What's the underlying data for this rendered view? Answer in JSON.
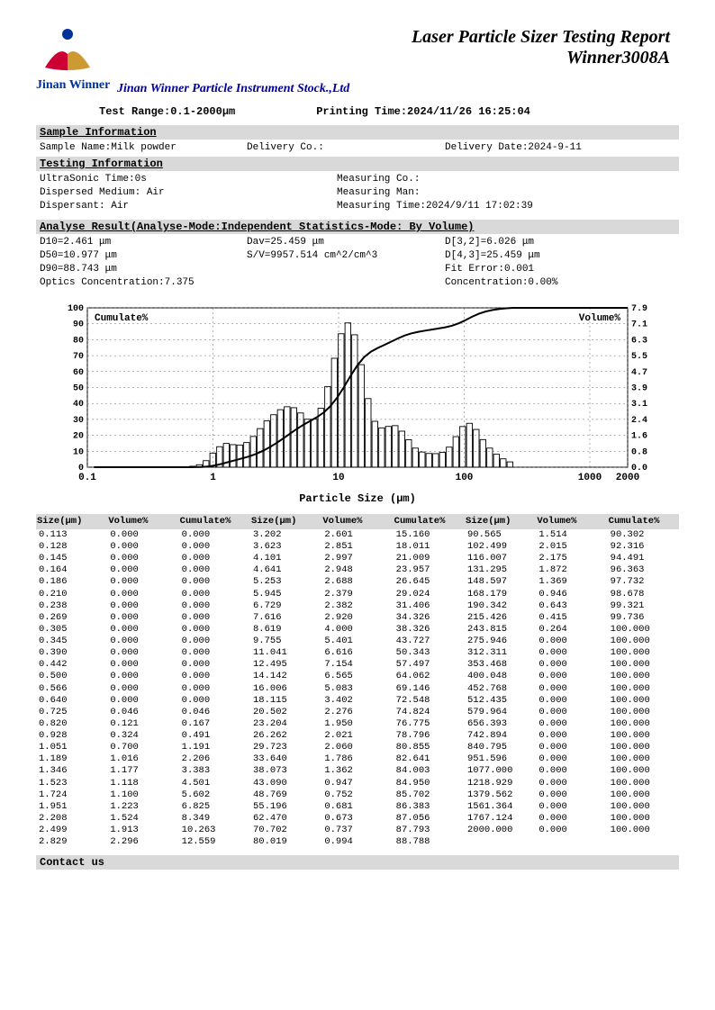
{
  "title_line1": "Laser Particle Sizer Testing Report",
  "title_line2": "Winner3008A",
  "brand": "Jinan Winner",
  "company": "Jinan Winner Particle Instrument Stock.,Ltd",
  "test_range": "Test Range:0.1-2000μm",
  "printing_time": "Printing Time:2024/11/26 16:25:04",
  "sample_info_hdr": "Sample Information",
  "sample": {
    "name_lbl": "Sample Name:Milk powder",
    "delivery_co": "Delivery Co.:",
    "delivery_date": "Delivery Date:2024-9-11"
  },
  "testing_info_hdr": "Testing Information",
  "testing": {
    "ultrasonic": "UltraSonic Time:0s",
    "measuring_co": "Measuring Co.:",
    "medium": "Dispersed Medium: Air",
    "measuring_man": "Measuring Man:",
    "dispersant": "Dispersant: Air",
    "measuring_time": "Measuring Time:2024/9/11 17:02:39"
  },
  "analyse_hdr": "Analyse Result(Analyse-Mode:Independent   Statistics-Mode: By Volume)",
  "analyse": {
    "d10": "D10=2.461 μm",
    "dav": "Dav=25.459 μm",
    "d32": "D[3,2]=6.026 μm",
    "d50": "D50=10.977 μm",
    "sv": "S/V=9957.514 cm^2/cm^3",
    "d43": "D[4,3]=25.459 μm",
    "d90": "D90=88.743 μm",
    "fit": "Fit Error:0.001",
    "optics": "Optics Concentration:7.375",
    "conc": "Concentration:0.00%"
  },
  "chart": {
    "left_label": "Cumulate%",
    "right_label": "Volume%",
    "xlabel": "Particle Size (μm)",
    "left_ticks": [
      0,
      10,
      20,
      30,
      40,
      50,
      60,
      70,
      80,
      90,
      100
    ],
    "right_ticks": [
      "0.0",
      "0.8",
      "1.6",
      "2.4",
      "3.1",
      "3.9",
      "4.7",
      "5.5",
      "6.3",
      "7.1",
      "7.9"
    ],
    "x_ticks": [
      "0.1",
      "1",
      "10",
      "100",
      "1000",
      "2000"
    ],
    "x_vals": [
      0.113,
      0.128,
      0.145,
      0.164,
      0.186,
      0.21,
      0.238,
      0.269,
      0.305,
      0.345,
      0.39,
      0.442,
      0.5,
      0.566,
      0.64,
      0.725,
      0.82,
      0.928,
      1.051,
      1.189,
      1.346,
      1.523,
      1.724,
      1.951,
      2.208,
      2.499,
      2.829,
      3.202,
      3.623,
      4.101,
      4.641,
      5.253,
      5.945,
      6.729,
      7.616,
      8.619,
      9.755,
      11.041,
      12.495,
      14.142,
      16.006,
      18.115,
      20.502,
      23.204,
      26.262,
      29.723,
      33.64,
      38.073,
      43.09,
      48.769,
      55.196,
      62.47,
      70.702,
      80.019,
      90.565,
      102.499,
      116.007,
      131.295,
      148.597,
      168.179,
      190.342,
      215.426,
      243.815,
      275.946,
      312.311,
      353.468,
      400.048,
      452.768,
      512.435,
      579.964,
      656.393,
      742.894,
      840.795,
      951.596,
      1077.0,
      1218.929,
      1379.562,
      1561.364,
      1767.124,
      2000.0
    ],
    "volume_pct": [
      0,
      0,
      0,
      0,
      0,
      0,
      0,
      0,
      0,
      0,
      0,
      0,
      0,
      0,
      0,
      0.046,
      0.121,
      0.324,
      0.7,
      1.016,
      1.177,
      1.118,
      1.1,
      1.223,
      1.524,
      1.913,
      2.296,
      2.601,
      2.851,
      2.997,
      2.948,
      2.688,
      2.379,
      2.382,
      2.92,
      4.0,
      5.401,
      6.616,
      7.154,
      6.565,
      5.083,
      3.402,
      2.276,
      1.95,
      2.021,
      2.06,
      1.786,
      1.362,
      0.947,
      0.752,
      0.681,
      0.673,
      0.737,
      0.994,
      1.514,
      2.015,
      2.175,
      1.872,
      1.369,
      0.946,
      0.643,
      0.415,
      0.264,
      0.0,
      0.0,
      0.0,
      0.0,
      0.0,
      0.0,
      0.0,
      0.0,
      0.0,
      0.0,
      0.0,
      0.0,
      0.0,
      0.0,
      0.0,
      0.0,
      0.0
    ],
    "cumulate_pct": [
      0,
      0,
      0,
      0,
      0,
      0,
      0,
      0,
      0,
      0,
      0,
      0,
      0,
      0,
      0,
      0.046,
      0.167,
      0.491,
      1.191,
      2.206,
      3.383,
      4.501,
      5.602,
      6.825,
      8.349,
      10.263,
      12.559,
      15.16,
      18.011,
      21.009,
      23.957,
      26.645,
      29.024,
      31.406,
      34.326,
      38.326,
      43.727,
      50.343,
      57.497,
      64.062,
      69.146,
      72.548,
      74.824,
      76.775,
      78.796,
      80.855,
      82.641,
      84.003,
      84.95,
      85.702,
      86.383,
      87.056,
      87.793,
      88.788,
      90.302,
      92.316,
      94.491,
      96.363,
      97.732,
      98.678,
      99.321,
      99.736,
      100.0,
      100.0,
      100.0,
      100.0,
      100.0,
      100.0,
      100.0,
      100.0,
      100.0,
      100.0,
      100.0,
      100.0,
      100.0,
      100.0,
      100.0,
      100.0,
      100.0,
      100.0
    ],
    "bar_color": "#000000",
    "line_color": "#000000",
    "grid_color": "#666666",
    "bg_color": "#ffffff",
    "left_max": 100,
    "right_max": 7.9
  },
  "table_headers": [
    "Size(μm)",
    "Volume%",
    "Cumulate%",
    "Size(μm)",
    "Volume%",
    "Cumulate%",
    "Size(μm)",
    "Volume%",
    "Cumulate%"
  ],
  "table_rows": [
    [
      "0.113",
      "0.000",
      "0.000",
      "3.202",
      "2.601",
      "15.160",
      "90.565",
      "1.514",
      "90.302"
    ],
    [
      "0.128",
      "0.000",
      "0.000",
      "3.623",
      "2.851",
      "18.011",
      "102.499",
      "2.015",
      "92.316"
    ],
    [
      "0.145",
      "0.000",
      "0.000",
      "4.101",
      "2.997",
      "21.009",
      "116.007",
      "2.175",
      "94.491"
    ],
    [
      "0.164",
      "0.000",
      "0.000",
      "4.641",
      "2.948",
      "23.957",
      "131.295",
      "1.872",
      "96.363"
    ],
    [
      "0.186",
      "0.000",
      "0.000",
      "5.253",
      "2.688",
      "26.645",
      "148.597",
      "1.369",
      "97.732"
    ],
    [
      "0.210",
      "0.000",
      "0.000",
      "5.945",
      "2.379",
      "29.024",
      "168.179",
      "0.946",
      "98.678"
    ],
    [
      "0.238",
      "0.000",
      "0.000",
      "6.729",
      "2.382",
      "31.406",
      "190.342",
      "0.643",
      "99.321"
    ],
    [
      "0.269",
      "0.000",
      "0.000",
      "7.616",
      "2.920",
      "34.326",
      "215.426",
      "0.415",
      "99.736"
    ],
    [
      "0.305",
      "0.000",
      "0.000",
      "8.619",
      "4.000",
      "38.326",
      "243.815",
      "0.264",
      "100.000"
    ],
    [
      "0.345",
      "0.000",
      "0.000",
      "9.755",
      "5.401",
      "43.727",
      "275.946",
      "0.000",
      "100.000"
    ],
    [
      "0.390",
      "0.000",
      "0.000",
      "11.041",
      "6.616",
      "50.343",
      "312.311",
      "0.000",
      "100.000"
    ],
    [
      "0.442",
      "0.000",
      "0.000",
      "12.495",
      "7.154",
      "57.497",
      "353.468",
      "0.000",
      "100.000"
    ],
    [
      "0.500",
      "0.000",
      "0.000",
      "14.142",
      "6.565",
      "64.062",
      "400.048",
      "0.000",
      "100.000"
    ],
    [
      "0.566",
      "0.000",
      "0.000",
      "16.006",
      "5.083",
      "69.146",
      "452.768",
      "0.000",
      "100.000"
    ],
    [
      "0.640",
      "0.000",
      "0.000",
      "18.115",
      "3.402",
      "72.548",
      "512.435",
      "0.000",
      "100.000"
    ],
    [
      "0.725",
      "0.046",
      "0.046",
      "20.502",
      "2.276",
      "74.824",
      "579.964",
      "0.000",
      "100.000"
    ],
    [
      "0.820",
      "0.121",
      "0.167",
      "23.204",
      "1.950",
      "76.775",
      "656.393",
      "0.000",
      "100.000"
    ],
    [
      "0.928",
      "0.324",
      "0.491",
      "26.262",
      "2.021",
      "78.796",
      "742.894",
      "0.000",
      "100.000"
    ],
    [
      "1.051",
      "0.700",
      "1.191",
      "29.723",
      "2.060",
      "80.855",
      "840.795",
      "0.000",
      "100.000"
    ],
    [
      "1.189",
      "1.016",
      "2.206",
      "33.640",
      "1.786",
      "82.641",
      "951.596",
      "0.000",
      "100.000"
    ],
    [
      "1.346",
      "1.177",
      "3.383",
      "38.073",
      "1.362",
      "84.003",
      "1077.000",
      "0.000",
      "100.000"
    ],
    [
      "1.523",
      "1.118",
      "4.501",
      "43.090",
      "0.947",
      "84.950",
      "1218.929",
      "0.000",
      "100.000"
    ],
    [
      "1.724",
      "1.100",
      "5.602",
      "48.769",
      "0.752",
      "85.702",
      "1379.562",
      "0.000",
      "100.000"
    ],
    [
      "1.951",
      "1.223",
      "6.825",
      "55.196",
      "0.681",
      "86.383",
      "1561.364",
      "0.000",
      "100.000"
    ],
    [
      "2.208",
      "1.524",
      "8.349",
      "62.470",
      "0.673",
      "87.056",
      "1767.124",
      "0.000",
      "100.000"
    ],
    [
      "2.499",
      "1.913",
      "10.263",
      "70.702",
      "0.737",
      "87.793",
      "2000.000",
      "0.000",
      "100.000"
    ],
    [
      "2.829",
      "2.296",
      "12.559",
      "80.019",
      "0.994",
      "88.788",
      "",
      "",
      ""
    ]
  ],
  "contact_hdr": "Contact us"
}
